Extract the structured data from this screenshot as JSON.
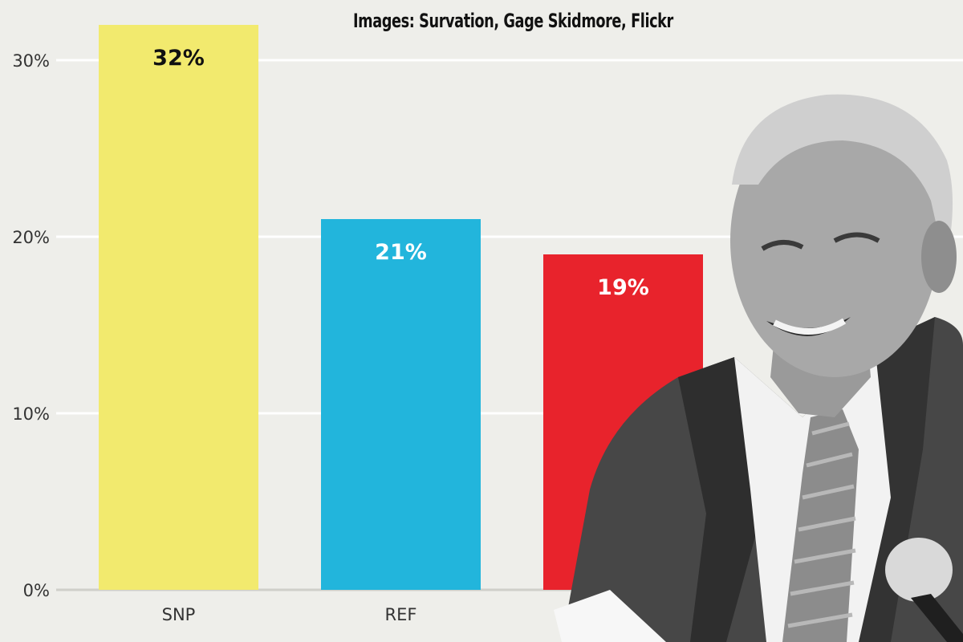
{
  "credit": "Images: Survation, Gage Skidmore, Flickr",
  "photo_subject": "photo-of-smiling-man-in-suit",
  "chart_data": {
    "type": "bar",
    "title": "",
    "xlabel": "",
    "ylabel": "",
    "categories": [
      "SNP",
      "REF",
      ""
    ],
    "values": [
      32,
      21,
      19
    ],
    "data_labels": [
      "32%",
      "21%",
      "19%"
    ],
    "colors": [
      "#f2ea6e",
      "#22b5dc",
      "#e8232c"
    ],
    "data_label_colors": [
      "#111111",
      "#ffffff",
      "#ffffff"
    ],
    "ylim": [
      0,
      32
    ],
    "yticks": [
      0,
      10,
      20,
      30
    ],
    "ytick_labels": [
      "0%",
      "10%",
      "20%",
      "30%"
    ],
    "grid": true,
    "legend": "none"
  }
}
